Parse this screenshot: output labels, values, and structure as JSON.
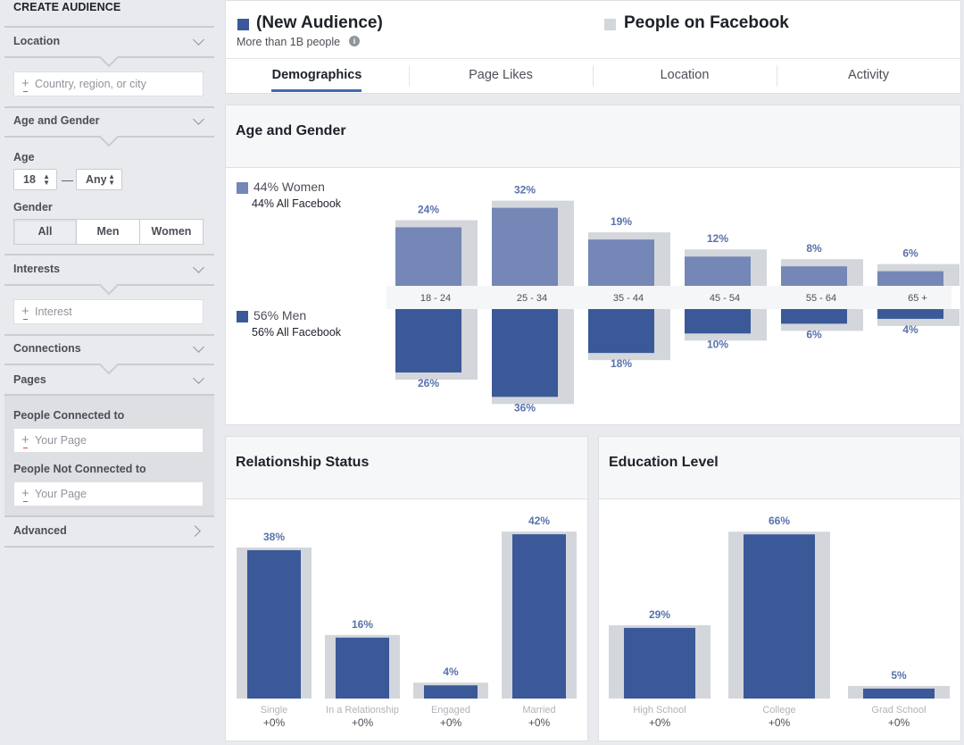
{
  "sidebar": {
    "title": "CREATE AUDIENCE",
    "location": {
      "label": "Location",
      "placeholder": "Country, region, or city"
    },
    "age_gender": {
      "label": "Age and Gender",
      "age_label": "Age",
      "age_min": "18",
      "age_max": "Any",
      "gender_label": "Gender",
      "genders": [
        "All",
        "Men",
        "Women"
      ],
      "selected_gender": "All"
    },
    "interests": {
      "label": "Interests",
      "placeholder": "Interest"
    },
    "connections": {
      "label": "Connections"
    },
    "pages": {
      "label": "Pages",
      "connected_label": "People Connected to",
      "connected_placeholder": "Your Page",
      "not_connected_label": "People Not Connected to",
      "not_connected_placeholder": "Your Page"
    },
    "advanced": {
      "label": "Advanced"
    }
  },
  "header": {
    "audience_title": "(New Audience)",
    "audience_sub": "More than 1B people",
    "comparison_title": "People on Facebook",
    "tabs": [
      "Demographics",
      "Page Likes",
      "Location",
      "Activity"
    ],
    "active_tab": "Demographics"
  },
  "colors": {
    "men": "#3b5998",
    "women": "#7587b6",
    "facebook_bar": "#d3d6db",
    "accent": "#4267b2"
  },
  "age_gender_panel": {
    "title": "Age and Gender",
    "women_label": "44% Women",
    "women_sub": "44% All Facebook",
    "men_label": "56% Men",
    "men_sub": "56% All Facebook"
  },
  "relationship_panel": {
    "title": "Relationship Status"
  },
  "education_panel": {
    "title": "Education Level"
  },
  "chart_data": [
    {
      "type": "bar",
      "title": "Age and Gender",
      "categories": [
        "18 - 24",
        "25 - 34",
        "35 - 44",
        "45 - 54",
        "55 - 64",
        "65 +"
      ],
      "series": [
        {
          "name": "Women",
          "values": [
            24,
            32,
            19,
            12,
            8,
            6
          ],
          "labels": [
            "24%",
            "32%",
            "19%",
            "12%",
            "8%",
            "6%"
          ]
        },
        {
          "name": "Men",
          "values": [
            26,
            36,
            18,
            10,
            6,
            4
          ],
          "labels": [
            "26%",
            "36%",
            "18%",
            "10%",
            "6%",
            "4%"
          ]
        }
      ]
    },
    {
      "type": "bar",
      "title": "Relationship Status",
      "categories": [
        "Single",
        "In a Relationship",
        "Engaged",
        "Married"
      ],
      "values": [
        38,
        16,
        4,
        42
      ],
      "labels": [
        "38%",
        "16%",
        "4%",
        "42%"
      ],
      "changes": [
        "+0%",
        "+0%",
        "+0%",
        "+0%"
      ]
    },
    {
      "type": "bar",
      "title": "Education Level",
      "categories": [
        "High School",
        "College",
        "Grad School"
      ],
      "values": [
        29,
        66,
        5
      ],
      "labels": [
        "29%",
        "66%",
        "5%"
      ],
      "changes": [
        "+0%",
        "+0%",
        "+0%"
      ]
    }
  ]
}
